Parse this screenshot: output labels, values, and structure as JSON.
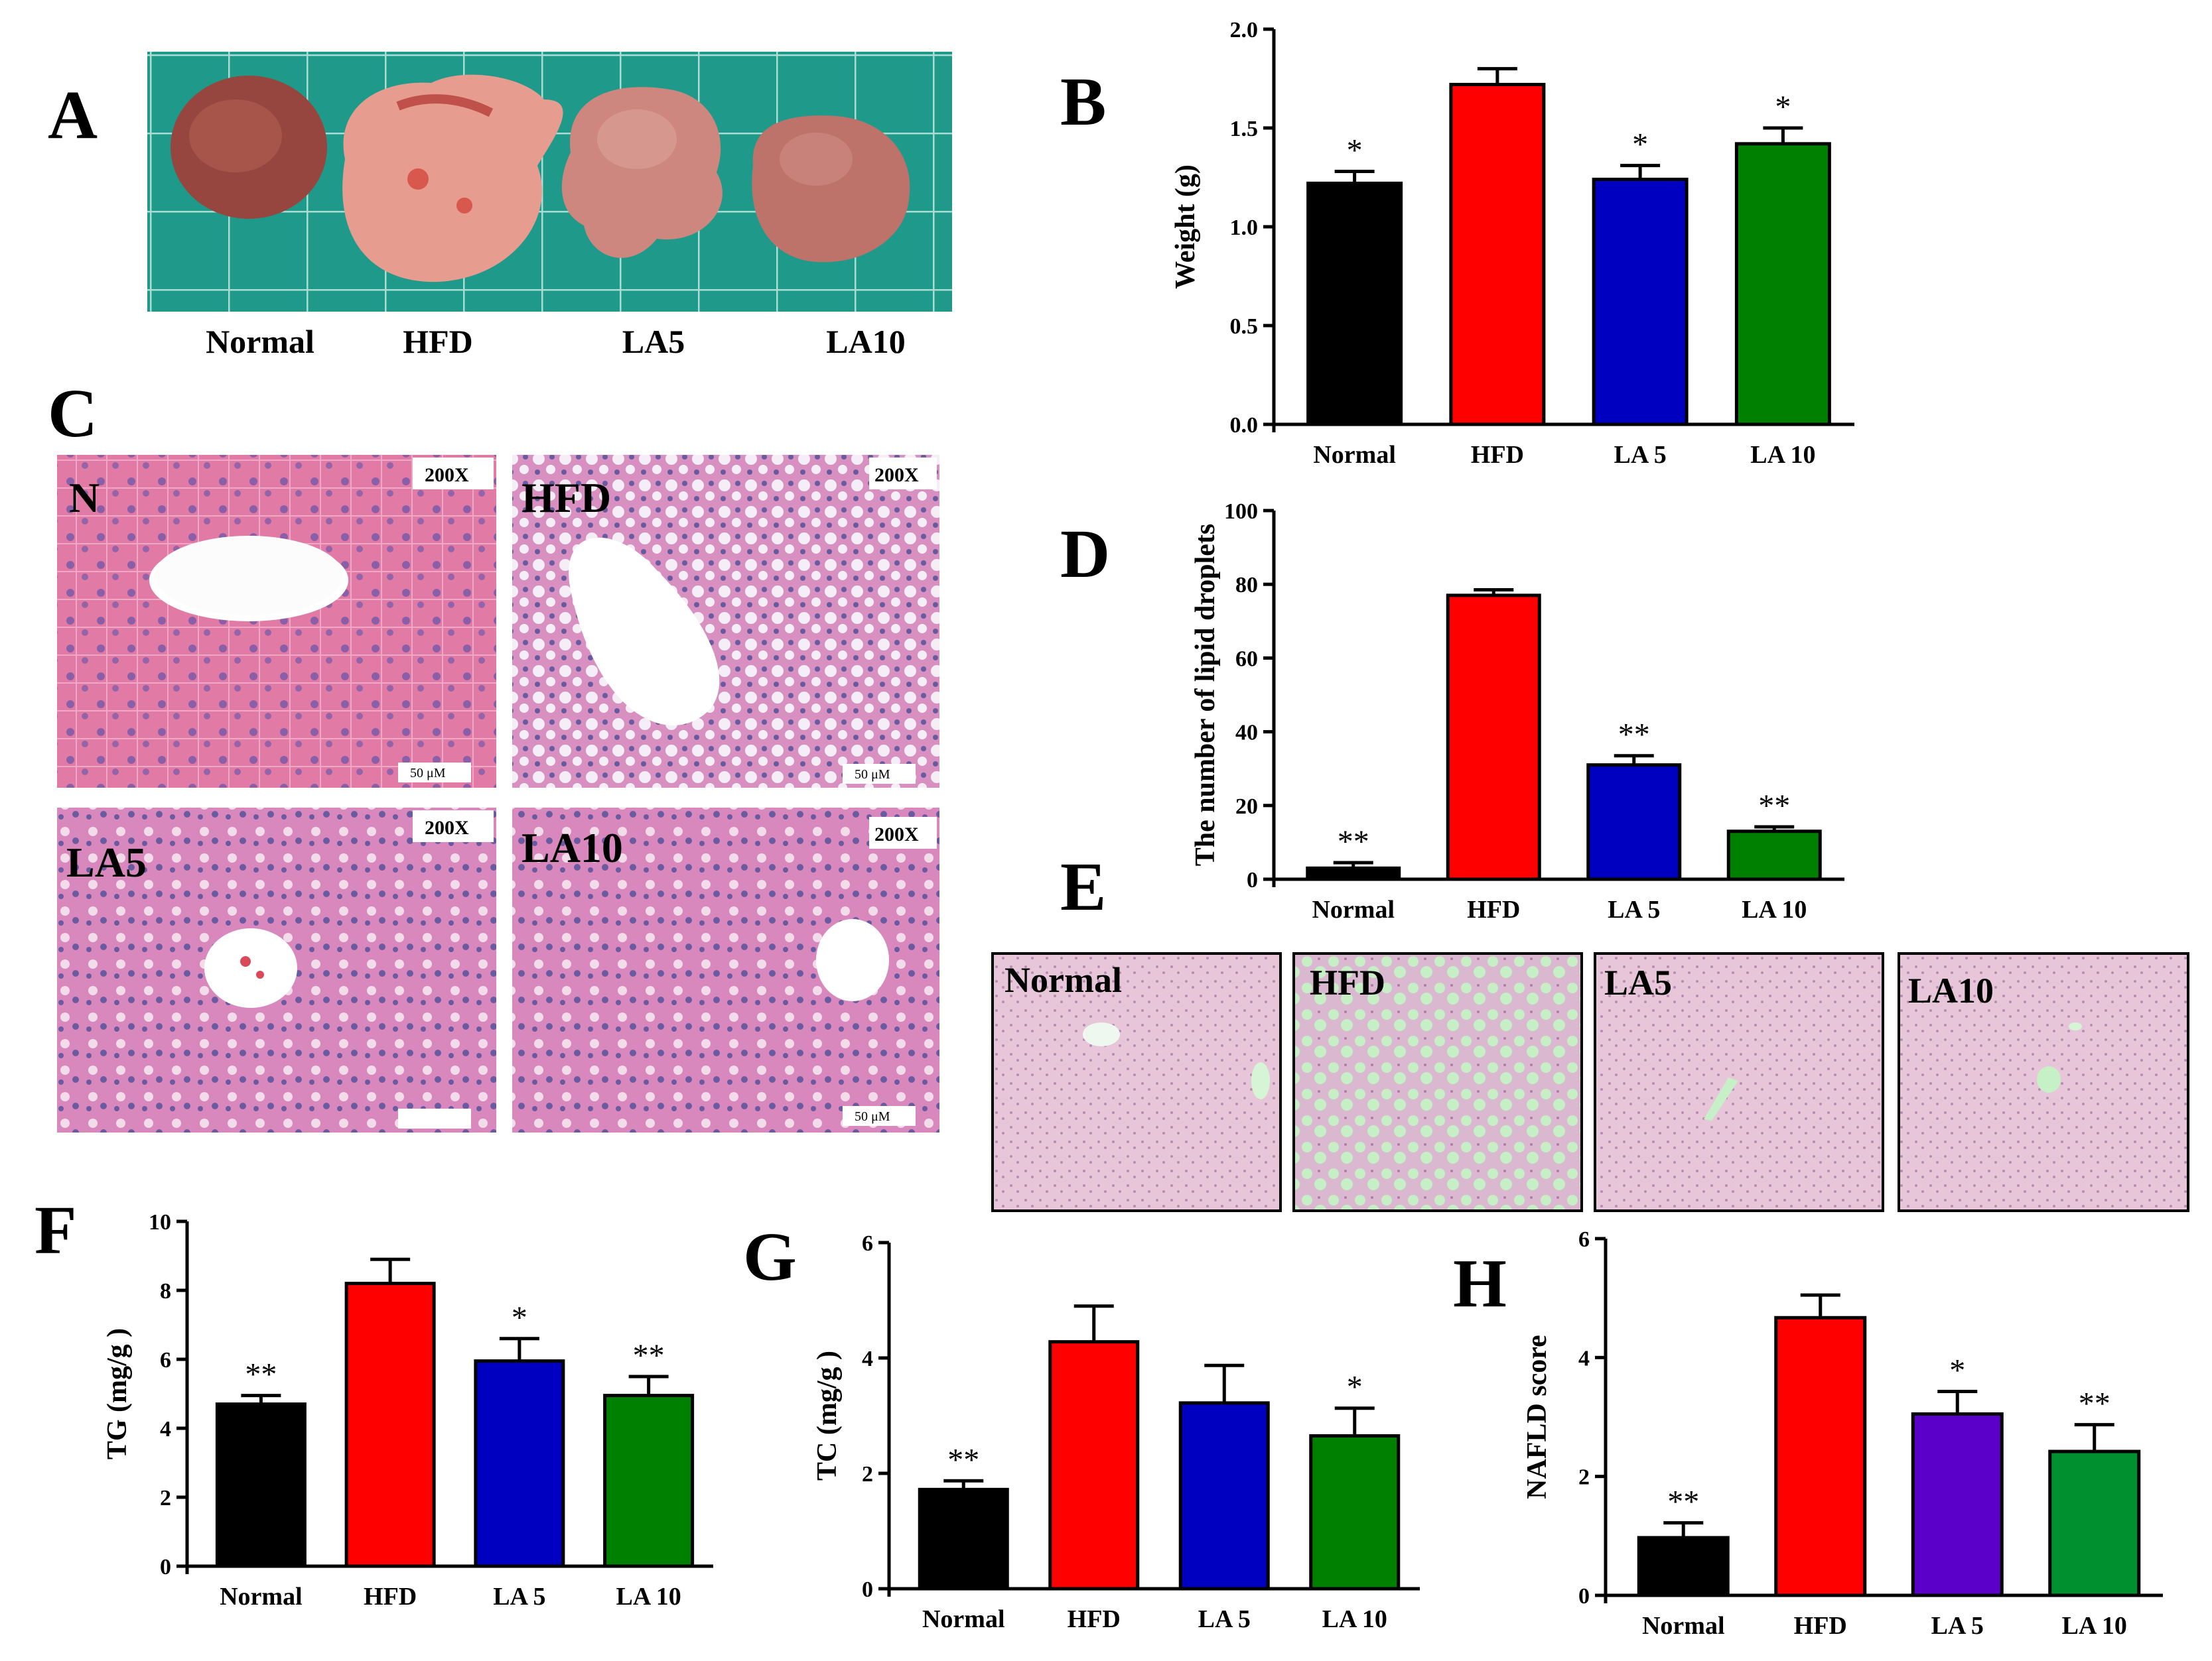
{
  "panel_letters": [
    "A",
    "B",
    "C",
    "D",
    "E",
    "F",
    "G",
    "H"
  ],
  "photo_a": {
    "labels": [
      "Normal",
      "HFD",
      "LA5",
      "LA10"
    ],
    "colors": {
      "mat": "#1f9a8a",
      "grid": "#9ed8cf",
      "liver_normal": "#9a4a44",
      "liver_hfd": "#e09a8e",
      "liver_la5": "#c9837a",
      "liver_la10": "#b86e66"
    }
  },
  "histo_c": {
    "tiles": [
      {
        "label": "N",
        "mag": "200X",
        "scale": "50 μM"
      },
      {
        "label": "HFD",
        "mag": "200X",
        "scale": "50 μM"
      },
      {
        "label": "LA5",
        "mag": "200X",
        "scale": ""
      },
      {
        "label": "LA10",
        "mag": "200X",
        "scale": "50 μM"
      }
    ],
    "colors": {
      "tissue": "#e07aa8",
      "tissue_dark": "#a86aa8",
      "nuclei": "#5a4f9a",
      "lumen": "#ffffff"
    }
  },
  "histo_e": {
    "tiles": [
      {
        "label": "Normal"
      },
      {
        "label": "HFD"
      },
      {
        "label": "LA5"
      },
      {
        "label": "LA10"
      }
    ],
    "colors": {
      "tissue": "#e4c7d8",
      "droplets": "#c4f0c4",
      "border": "#000000"
    }
  },
  "chart_data": [
    {
      "panel": "B",
      "type": "bar",
      "categories": [
        "Normal",
        "HFD",
        "LA 5",
        "LA 10"
      ],
      "values": [
        1.22,
        1.72,
        1.24,
        1.42
      ],
      "errors": [
        0.06,
        0.08,
        0.07,
        0.08
      ],
      "significance": [
        "*",
        "",
        "*",
        "*"
      ],
      "ylabel": "Weight (g)",
      "ylim": [
        0,
        2.0
      ],
      "yticks": [
        0.0,
        0.5,
        1.0,
        1.5,
        2.0
      ],
      "ytick_labels": [
        "0.0",
        "0.5",
        "1.0",
        "1.5",
        "2.0"
      ],
      "colors": [
        "#000000",
        "#ff0000",
        "#0000c0",
        "#008000"
      ]
    },
    {
      "panel": "D",
      "type": "bar",
      "categories": [
        "Normal",
        "HFD",
        "LA 5",
        "LA 10"
      ],
      "values": [
        3,
        77,
        31,
        13
      ],
      "errors": [
        1.5,
        1.5,
        2.5,
        1.2
      ],
      "significance": [
        "**",
        "",
        "**",
        "**"
      ],
      "ylabel": "The number of lipid droplets",
      "ylim": [
        0,
        100
      ],
      "yticks": [
        0,
        20,
        40,
        60,
        80,
        100
      ],
      "ytick_labels": [
        "0",
        "20",
        "40",
        "60",
        "80",
        "100"
      ],
      "colors": [
        "#000000",
        "#ff0000",
        "#0000c0",
        "#008000"
      ]
    },
    {
      "panel": "F",
      "type": "bar",
      "categories": [
        "Normal",
        "HFD",
        "LA 5",
        "LA 10"
      ],
      "values": [
        4.7,
        8.2,
        5.95,
        4.95
      ],
      "errors": [
        0.25,
        0.7,
        0.65,
        0.55
      ],
      "significance": [
        "**",
        "",
        "*",
        "**"
      ],
      "ylabel": "TG (mg/g )",
      "ylim": [
        0,
        10
      ],
      "yticks": [
        0,
        2,
        4,
        6,
        8,
        10
      ],
      "ytick_labels": [
        "0",
        "2",
        "4",
        "6",
        "8",
        "10"
      ],
      "colors": [
        "#000000",
        "#ff0000",
        "#0000c0",
        "#008000"
      ]
    },
    {
      "panel": "G",
      "type": "bar",
      "categories": [
        "Normal",
        "HFD",
        "LA 5",
        "LA 10"
      ],
      "values": [
        1.72,
        4.28,
        3.22,
        2.65
      ],
      "errors": [
        0.15,
        0.62,
        0.65,
        0.48
      ],
      "significance": [
        "**",
        "",
        "",
        "*"
      ],
      "ylabel": "TC (mg/g )",
      "ylim": [
        0,
        6
      ],
      "yticks": [
        0,
        2,
        4,
        6
      ],
      "ytick_labels": [
        "0",
        "2",
        "4",
        "6"
      ],
      "colors": [
        "#000000",
        "#ff0000",
        "#0000c0",
        "#008000"
      ]
    },
    {
      "panel": "H",
      "type": "bar",
      "categories": [
        "Normal",
        "HFD",
        "LA 5",
        "LA 10"
      ],
      "values": [
        0.97,
        4.67,
        3.05,
        2.42
      ],
      "errors": [
        0.25,
        0.38,
        0.38,
        0.45
      ],
      "significance": [
        "**",
        "",
        "*",
        "**"
      ],
      "ylabel": "NAFLD score",
      "ylim": [
        0,
        6
      ],
      "yticks": [
        0,
        2,
        4,
        6
      ],
      "ytick_labels": [
        "0",
        "2",
        "4",
        "6"
      ],
      "colors": [
        "#000000",
        "#ff0000",
        "#5a00c8",
        "#009030"
      ]
    }
  ]
}
